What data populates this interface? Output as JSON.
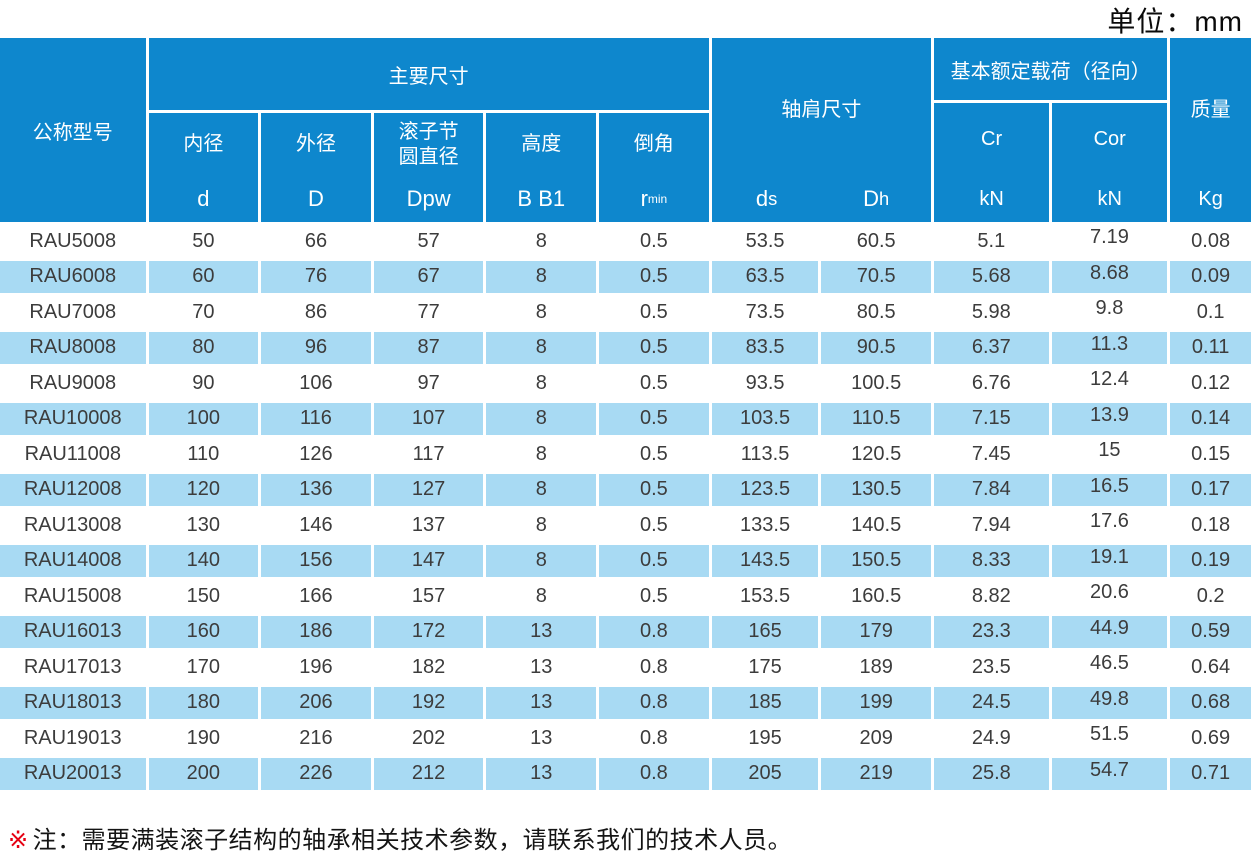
{
  "page": {
    "unit_label": "单位：mm"
  },
  "colors": {
    "header_blue": "#0e87cd",
    "stripe_blue": "#a8daf3",
    "note_red": "#e60012",
    "text_dark": "#3c3c3c"
  },
  "table": {
    "header": {
      "model": "公称型号",
      "main_dims": {
        "group": "主要尺寸",
        "cols": [
          {
            "label": "内径",
            "symbol": "d",
            "symbol_sub": ""
          },
          {
            "label": "外径",
            "symbol": "D",
            "symbol_sub": ""
          },
          {
            "label": "滚子节\n圆直径",
            "symbol": "Dpw",
            "symbol_sub": ""
          },
          {
            "label": "高度",
            "symbol": "B B1",
            "symbol_sub": ""
          },
          {
            "label": "倒角",
            "symbol": "r",
            "symbol_sub": "min"
          }
        ]
      },
      "shoulder": {
        "group": "轴肩尺寸",
        "cols": [
          {
            "symbol": "d",
            "sub": "s"
          },
          {
            "symbol": "D",
            "sub": "h"
          }
        ]
      },
      "load": {
        "group": "基本额定载荷（径向）",
        "cols": [
          {
            "label": "Cr",
            "unit": "kN"
          },
          {
            "label": "Cor",
            "unit": "kN"
          }
        ]
      },
      "mass": {
        "label": "质量",
        "unit": "Kg"
      }
    },
    "rows": [
      {
        "model": "RAU5008",
        "values": [
          "50",
          "66",
          "57",
          "8",
          "0.5",
          "53.5",
          "60.5",
          "5.1",
          "7.19",
          "0.08"
        ]
      },
      {
        "model": "RAU6008",
        "values": [
          "60",
          "76",
          "67",
          "8",
          "0.5",
          "63.5",
          "70.5",
          "5.68",
          "8.68",
          "0.09"
        ]
      },
      {
        "model": "RAU7008",
        "values": [
          "70",
          "86",
          "77",
          "8",
          "0.5",
          "73.5",
          "80.5",
          "5.98",
          "9.8",
          "0.1"
        ]
      },
      {
        "model": "RAU8008",
        "values": [
          "80",
          "96",
          "87",
          "8",
          "0.5",
          "83.5",
          "90.5",
          "6.37",
          "11.3",
          "0.11"
        ]
      },
      {
        "model": "RAU9008",
        "values": [
          "90",
          "106",
          "97",
          "8",
          "0.5",
          "93.5",
          "100.5",
          "6.76",
          "12.4",
          "0.12"
        ]
      },
      {
        "model": "RAU10008",
        "values": [
          "100",
          "116",
          "107",
          "8",
          "0.5",
          "103.5",
          "110.5",
          "7.15",
          "13.9",
          "0.14"
        ]
      },
      {
        "model": "RAU11008",
        "values": [
          "110",
          "126",
          "117",
          "8",
          "0.5",
          "113.5",
          "120.5",
          "7.45",
          "15",
          "0.15"
        ]
      },
      {
        "model": "RAU12008",
        "values": [
          "120",
          "136",
          "127",
          "8",
          "0.5",
          "123.5",
          "130.5",
          "7.84",
          "16.5",
          "0.17"
        ]
      },
      {
        "model": "RAU13008",
        "values": [
          "130",
          "146",
          "137",
          "8",
          "0.5",
          "133.5",
          "140.5",
          "7.94",
          "17.6",
          "0.18"
        ]
      },
      {
        "model": "RAU14008",
        "values": [
          "140",
          "156",
          "147",
          "8",
          "0.5",
          "143.5",
          "150.5",
          "8.33",
          "19.1",
          "0.19"
        ]
      },
      {
        "model": "RAU15008",
        "values": [
          "150",
          "166",
          "157",
          "8",
          "0.5",
          "153.5",
          "160.5",
          "8.82",
          "20.6",
          "0.2"
        ]
      },
      {
        "model": "RAU16013",
        "values": [
          "160",
          "186",
          "172",
          "13",
          "0.8",
          "165",
          "179",
          "23.3",
          "44.9",
          "0.59"
        ]
      },
      {
        "model": "RAU17013",
        "values": [
          "170",
          "196",
          "182",
          "13",
          "0.8",
          "175",
          "189",
          "23.5",
          "46.5",
          "0.64"
        ]
      },
      {
        "model": "RAU18013",
        "values": [
          "180",
          "206",
          "192",
          "13",
          "0.8",
          "185",
          "199",
          "24.5",
          "49.8",
          "0.68"
        ]
      },
      {
        "model": "RAU19013",
        "values": [
          "190",
          "216",
          "202",
          "13",
          "0.8",
          "195",
          "209",
          "24.9",
          "51.5",
          "0.69"
        ]
      },
      {
        "model": "RAU20013",
        "values": [
          "200",
          "226",
          "212",
          "13",
          "0.8",
          "205",
          "219",
          "25.8",
          "54.7",
          "0.71"
        ]
      }
    ]
  },
  "note": {
    "marker": "※",
    "text": "注：需要满装滚子结构的轴承相关技术参数，请联系我们的技术人员。"
  }
}
